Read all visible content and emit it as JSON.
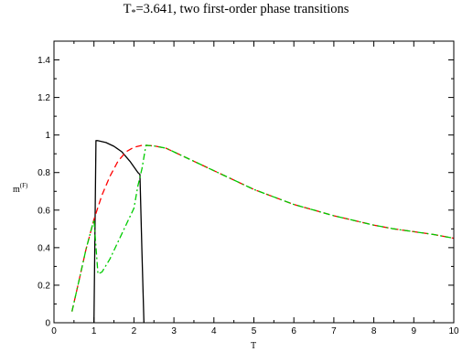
{
  "chart_data": {
    "type": "line",
    "title_prefix": "T",
    "title_subscript": "*",
    "title_rest": "=3.641, two first-order phase transitions",
    "xlabel": "T",
    "ylabel_main": "m",
    "ylabel_sup": "(F)",
    "xlim": [
      0,
      10
    ],
    "ylim": [
      0,
      1.5
    ],
    "x_ticks": [
      "0",
      "1",
      "2",
      "3",
      "4",
      "5",
      "6",
      "7",
      "8",
      "9",
      "10"
    ],
    "y_ticks": [
      "0",
      "0.2",
      "0.4",
      "0.6",
      "0.8",
      "1",
      "1.2",
      "1.4"
    ],
    "grid": false,
    "legend": "none",
    "series": [
      {
        "color": "#000000",
        "dash": "solid",
        "x": [
          1.0,
          1.05,
          1.1,
          1.3,
          1.5,
          1.7,
          1.9,
          2.1,
          2.15,
          2.2,
          2.25
        ],
        "y": [
          0.0,
          0.97,
          0.97,
          0.96,
          0.94,
          0.91,
          0.86,
          0.8,
          0.79,
          0.38,
          0.0
        ]
      },
      {
        "color": "#ff0000",
        "dash": "dashed",
        "x": [
          0.45,
          0.6,
          0.8,
          1.0,
          1.2,
          1.4,
          1.6,
          1.8,
          2.0,
          2.2,
          2.3,
          2.5,
          2.8,
          3.0,
          3.5,
          4.0,
          4.5,
          5.0,
          5.5,
          6.0,
          6.5,
          7.0,
          7.5,
          8.0,
          8.5,
          9.0,
          9.5,
          10.0
        ],
        "y": [
          0.06,
          0.2,
          0.39,
          0.55,
          0.68,
          0.78,
          0.86,
          0.91,
          0.935,
          0.945,
          0.945,
          0.942,
          0.93,
          0.91,
          0.86,
          0.81,
          0.76,
          0.71,
          0.67,
          0.63,
          0.6,
          0.57,
          0.545,
          0.52,
          0.5,
          0.485,
          0.47,
          0.45
        ]
      },
      {
        "color": "#00cc00",
        "dash": "dashdot",
        "x": [
          0.45,
          0.6,
          0.8,
          1.0,
          1.1,
          1.2,
          1.4,
          1.6,
          1.8,
          2.0,
          2.1,
          2.2,
          2.3,
          2.5,
          2.8,
          3.0,
          3.5,
          4.0,
          4.5,
          5.0,
          5.5,
          6.0,
          6.5,
          7.0,
          7.5,
          8.0,
          8.5,
          9.0,
          9.5,
          10.0
        ],
        "y": [
          0.06,
          0.2,
          0.39,
          0.55,
          0.26,
          0.27,
          0.34,
          0.43,
          0.52,
          0.61,
          0.73,
          0.82,
          0.945,
          0.942,
          0.93,
          0.91,
          0.86,
          0.81,
          0.76,
          0.71,
          0.67,
          0.63,
          0.6,
          0.57,
          0.545,
          0.52,
          0.5,
          0.485,
          0.47,
          0.45
        ]
      }
    ]
  }
}
